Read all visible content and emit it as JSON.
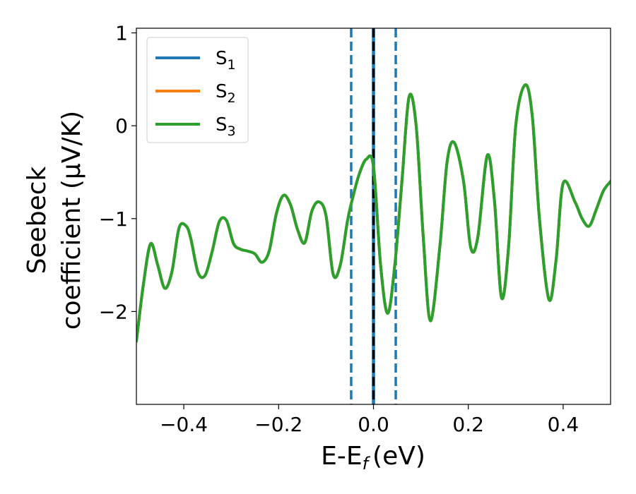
{
  "chart_data": {
    "type": "line",
    "xlabel": "E-E",
    "xlabel_sub": "f",
    "xlabel_unit": "(eV)",
    "ylabel_line1": "Seebeck",
    "ylabel_line2": "coefficient  (μV/K)",
    "xlim": [
      -0.5,
      0.5
    ],
    "ylim": [
      -3.0,
      1.05
    ],
    "xticks": [
      -0.4,
      -0.2,
      0.0,
      0.2,
      0.4
    ],
    "xtick_labels": [
      "−0.4",
      "−0.2",
      "0.0",
      "0.2",
      "0.4"
    ],
    "yticks": [
      -2,
      -1,
      0,
      1
    ],
    "ytick_labels": [
      "−2",
      "−1",
      "0",
      "1"
    ],
    "grid": false,
    "legend_position": "top-left",
    "vlines": [
      {
        "x": -0.047,
        "style": "dashed",
        "color": "#1f77b4"
      },
      {
        "x": 0.047,
        "style": "dashed",
        "color": "#1f77b4"
      },
      {
        "x": 0.0,
        "style": "solid",
        "color": "#1f77b4"
      },
      {
        "x": 0.0,
        "style": "dashed",
        "color": "#000000"
      }
    ],
    "x": [
      -0.5,
      -0.485,
      -0.47,
      -0.455,
      -0.44,
      -0.425,
      -0.41,
      -0.395,
      -0.385,
      -0.37,
      -0.355,
      -0.34,
      -0.325,
      -0.31,
      -0.295,
      -0.28,
      -0.265,
      -0.25,
      -0.235,
      -0.22,
      -0.205,
      -0.19,
      -0.175,
      -0.16,
      -0.145,
      -0.13,
      -0.115,
      -0.1,
      -0.085,
      -0.07,
      -0.055,
      -0.045,
      -0.03,
      -0.015,
      0.0,
      0.015,
      0.03,
      0.045,
      0.06,
      0.075,
      0.09,
      0.105,
      0.12,
      0.14,
      0.155,
      0.17,
      0.19,
      0.205,
      0.22,
      0.24,
      0.255,
      0.27,
      0.285,
      0.3,
      0.32,
      0.335,
      0.35,
      0.37,
      0.385,
      0.4,
      0.425,
      0.44,
      0.455,
      0.47,
      0.485,
      0.5
    ],
    "series": [
      {
        "name": "S",
        "sub": "1",
        "color": "#1f77b4",
        "values": [
          -2.32,
          -1.7,
          -1.27,
          -1.5,
          -1.75,
          -1.57,
          -1.1,
          -1.08,
          -1.22,
          -1.58,
          -1.61,
          -1.35,
          -1.03,
          -1.02,
          -1.27,
          -1.33,
          -1.35,
          -1.38,
          -1.47,
          -1.35,
          -0.95,
          -0.75,
          -0.85,
          -1.12,
          -1.26,
          -0.92,
          -0.82,
          -0.97,
          -1.6,
          -1.5,
          -1.03,
          -0.8,
          -0.52,
          -0.36,
          -0.44,
          -1.5,
          -2.02,
          -1.5,
          -0.6,
          0.31,
          0.0,
          -1.2,
          -2.1,
          -1.3,
          -0.4,
          -0.18,
          -0.6,
          -1.31,
          -1.2,
          -0.32,
          -0.8,
          -1.85,
          -1.3,
          0.0,
          0.44,
          0.1,
          -1.0,
          -1.87,
          -1.45,
          -0.62,
          -0.82,
          -1.0,
          -1.08,
          -0.9,
          -0.7,
          -0.6
        ]
      },
      {
        "name": "S",
        "sub": "2",
        "color": "#ff7f0e",
        "values": [
          -2.32,
          -1.7,
          -1.27,
          -1.5,
          -1.75,
          -1.57,
          -1.1,
          -1.08,
          -1.22,
          -1.58,
          -1.61,
          -1.35,
          -1.03,
          -1.02,
          -1.27,
          -1.33,
          -1.35,
          -1.38,
          -1.47,
          -1.35,
          -0.95,
          -0.75,
          -0.85,
          -1.12,
          -1.26,
          -0.92,
          -0.82,
          -0.97,
          -1.6,
          -1.5,
          -1.03,
          -0.8,
          -0.52,
          -0.36,
          -0.44,
          -1.5,
          -2.02,
          -1.5,
          -0.6,
          0.31,
          0.0,
          -1.2,
          -2.1,
          -1.3,
          -0.4,
          -0.18,
          -0.6,
          -1.31,
          -1.2,
          -0.32,
          -0.8,
          -1.85,
          -1.3,
          0.0,
          0.44,
          0.1,
          -1.0,
          -1.87,
          -1.45,
          -0.62,
          -0.82,
          -1.0,
          -1.08,
          -0.9,
          -0.7,
          -0.6
        ]
      },
      {
        "name": "S",
        "sub": "3",
        "color": "#2ca02c",
        "values": [
          -2.32,
          -1.7,
          -1.27,
          -1.5,
          -1.75,
          -1.57,
          -1.1,
          -1.08,
          -1.22,
          -1.58,
          -1.61,
          -1.35,
          -1.03,
          -1.02,
          -1.27,
          -1.33,
          -1.35,
          -1.38,
          -1.47,
          -1.35,
          -0.95,
          -0.75,
          -0.85,
          -1.12,
          -1.26,
          -0.92,
          -0.82,
          -0.97,
          -1.6,
          -1.5,
          -1.03,
          -0.8,
          -0.52,
          -0.36,
          -0.44,
          -1.5,
          -2.02,
          -1.5,
          -0.6,
          0.31,
          0.0,
          -1.2,
          -2.1,
          -1.3,
          -0.4,
          -0.18,
          -0.6,
          -1.31,
          -1.2,
          -0.32,
          -0.8,
          -1.85,
          -1.3,
          0.0,
          0.44,
          0.1,
          -1.0,
          -1.87,
          -1.45,
          -0.62,
          -0.82,
          -1.0,
          -1.08,
          -0.9,
          -0.7,
          -0.6
        ]
      }
    ]
  }
}
